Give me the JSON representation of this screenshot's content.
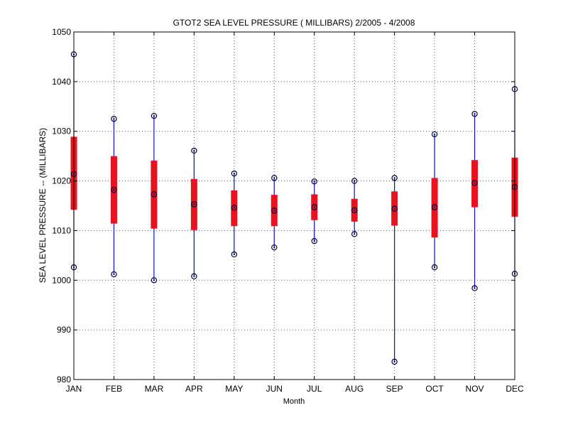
{
  "chart_data": {
    "type": "boxplot",
    "title": "GTOT2  SEA LEVEL PRESSURE ( MILLIBARS) 2/2005 - 4/2008",
    "xlabel": "Month",
    "ylabel": "SEA LEVEL PRESSURE -- (MILLIBARS)",
    "ylim": [
      980,
      1050
    ],
    "yticks": [
      980,
      990,
      1000,
      1010,
      1020,
      1030,
      1040,
      1050
    ],
    "grid": true,
    "categories": [
      "JAN",
      "FEB",
      "MAR",
      "APR",
      "MAY",
      "JUN",
      "JUL",
      "AUG",
      "SEP",
      "OCT",
      "NOV",
      "DEC"
    ],
    "series": [
      {
        "min": [
          1002.6,
          1001.2,
          1000.0,
          1000.8,
          1005.2,
          1006.6,
          1007.9,
          1009.3,
          983.6,
          1002.6,
          998.4,
          1001.3
        ],
        "q1": [
          1014.2,
          1011.4,
          1010.4,
          1010.1,
          1010.9,
          1010.9,
          1012.1,
          1011.8,
          1011.0,
          1008.6,
          1014.7,
          1012.8
        ],
        "median": [
          1021.4,
          1018.2,
          1017.3,
          1015.3,
          1014.6,
          1014.0,
          1014.7,
          1014.1,
          1014.4,
          1014.7,
          1019.6,
          1018.8
        ],
        "q3": [
          1028.9,
          1025.0,
          1024.1,
          1020.4,
          1018.1,
          1017.2,
          1017.3,
          1016.4,
          1017.9,
          1020.6,
          1024.2,
          1024.7
        ],
        "max": [
          1045.5,
          1032.5,
          1033.1,
          1026.1,
          1021.5,
          1020.6,
          1019.9,
          1020.0,
          1020.6,
          1029.4,
          1033.5,
          1038.5
        ]
      }
    ],
    "colors": {
      "box": "#e8131e",
      "whisker": "#1010c8",
      "marker": "#000040",
      "grid": "#555555",
      "axis": "#000000"
    }
  }
}
